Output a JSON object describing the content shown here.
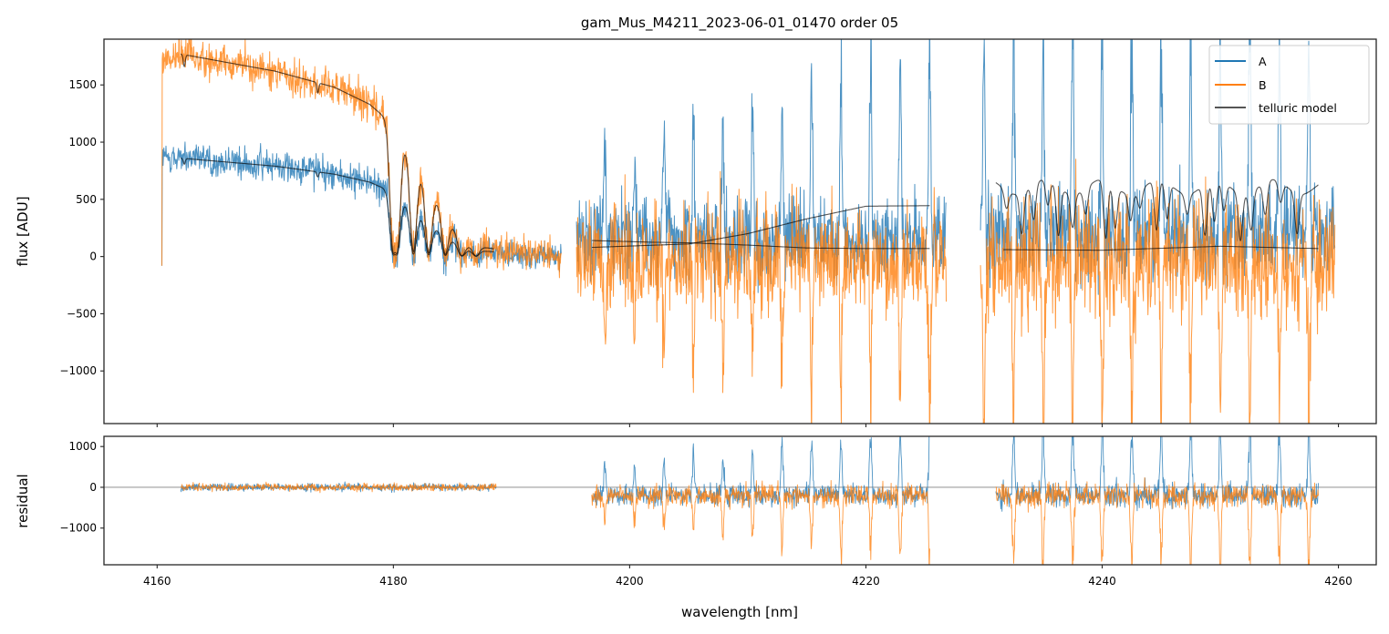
{
  "chart_data": {
    "type": "line",
    "title": "gam_Mus_M4211_2023-06-01_01470  order 05",
    "xlabel": "wavelength [nm]",
    "colors": {
      "A": "#1f77b4",
      "B": "#ff7f0e",
      "telluric": "#000000",
      "zero_line": "#808080",
      "axes": "#262626"
    },
    "legend": {
      "position": "top-right",
      "entries": [
        {
          "label": "A",
          "color": "#1f77b4"
        },
        {
          "label": "B",
          "color": "#ff7f0e"
        },
        {
          "label": "telluric model",
          "color": "#555555"
        }
      ]
    },
    "x_ticks": [
      4160,
      4180,
      4200,
      4220,
      4240,
      4260
    ],
    "xlim": [
      4155.5,
      4263.2
    ],
    "panels": [
      {
        "name": "flux",
        "ylabel": "flux [ADU]",
        "ylim": [
          -1460,
          1900
        ],
        "y_ticks": [
          -1000,
          -500,
          0,
          500,
          1000,
          1500
        ],
        "y_tick_labels": [
          "−1000",
          "−500",
          "0",
          "500",
          "1000",
          "1500"
        ],
        "segments": [
          {
            "x_range": [
              4160.4,
              4194.2
            ],
            "model_range": [
              4162.0,
              4188.5
            ],
            "A_continuum": {
              "x": [
                4160.4,
                4162,
                4170,
                4175,
                4178,
                4180,
                4183,
                4186,
                4194
              ],
              "y": [
                850,
                860,
                790,
                720,
                650,
                560,
                300,
                60,
                0
              ]
            },
            "B_continuum": {
              "x": [
                4160.4,
                4162,
                4170,
                4175,
                4178,
                4180,
                4183,
                4186,
                4194
              ],
              "y": [
                1700,
                1770,
                1620,
                1480,
                1330,
                1150,
                600,
                100,
                0
              ]
            },
            "telluric_lines_nm": [
              4162.3,
              4173.6,
              4180.0,
              4180.3,
              4181.7,
              4183.0,
              4184.4,
              4185.8,
              4187.0
            ],
            "noise_A": 70,
            "noise_B": 80
          },
          {
            "x_range": [
              4195.5,
              4226.8
            ],
            "model_range": [
              4196.8,
              4225.4
            ],
            "A_model": {
              "x": [
                4196.8,
                4205,
                4210,
                4215,
                4220,
                4225.4
              ],
              "y": [
                80,
                110,
                200,
                330,
                440,
                445
              ]
            },
            "B_model": {
              "x": [
                4196.8,
                4202,
                4205,
                4210,
                4215,
                4220,
                4225.4
              ],
              "y": [
                140,
                125,
                120,
                100,
                75,
                70,
                70
              ]
            },
            "spike_period_nm": 2.5,
            "noise_A": 220,
            "noise_B": 240
          },
          {
            "x_range": [
              4229.7,
              4259.7
            ],
            "model_range": [
              4231.0,
              4258.3
            ],
            "A_model_level": 640,
            "B_model": {
              "x": [
                4231.6,
                4240,
                4250,
                4258.3
              ],
              "y": [
                60,
                55,
                90,
                70
              ]
            },
            "spike_period_nm": 2.5,
            "noise_A": 260,
            "noise_B": 280
          }
        ]
      },
      {
        "name": "residual",
        "ylabel": "residual",
        "ylim": [
          -1900,
          1250
        ],
        "y_ticks": [
          -1000,
          0,
          1000
        ],
        "y_tick_labels": [
          "−1000",
          "0",
          "1000"
        ],
        "segments": [
          {
            "x_range": [
              4162.0,
              4188.7
            ],
            "amp": 90
          },
          {
            "x_range": [
              4196.8,
              4225.4
            ],
            "amp": 260,
            "spike_period_nm": 2.5
          },
          {
            "x_range": [
              4231.0,
              4258.3
            ],
            "amp": 300,
            "spike_period_nm": 2.5
          }
        ]
      }
    ]
  }
}
